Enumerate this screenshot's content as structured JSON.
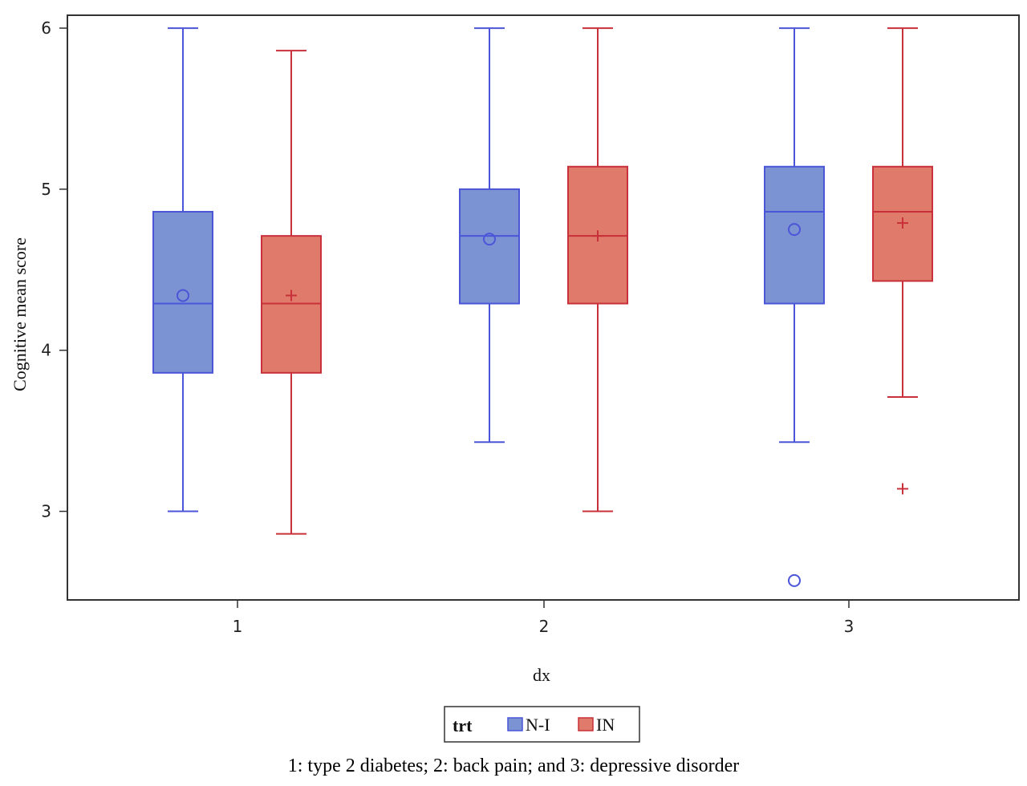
{
  "chart_data": {
    "type": "box",
    "xlabel": "dx",
    "ylabel": "Cognitive mean score",
    "ylim": [
      2.45,
      6.08
    ],
    "y_ticks": [
      3,
      4,
      5,
      6
    ],
    "categories": [
      "1",
      "2",
      "3"
    ],
    "group_title": "trt",
    "series": [
      {
        "name": "N-I",
        "color": "#7b93d3",
        "line_color": "#4a55d8",
        "mean_marker": "circle",
        "boxes": [
          {
            "category": "1",
            "whisker_low": 3.0,
            "q1": 3.86,
            "median": 4.29,
            "q3": 4.86,
            "whisker_high": 6.0,
            "mean": 4.34,
            "outliers": []
          },
          {
            "category": "2",
            "whisker_low": 3.43,
            "q1": 4.29,
            "median": 4.71,
            "q3": 5.0,
            "whisker_high": 6.0,
            "mean": 4.69,
            "outliers": []
          },
          {
            "category": "3",
            "whisker_low": 3.43,
            "q1": 4.29,
            "median": 4.86,
            "q3": 5.14,
            "whisker_high": 6.0,
            "mean": 4.75,
            "outliers": [
              2.57
            ]
          }
        ]
      },
      {
        "name": "IN",
        "color": "#e07b6c",
        "line_color": "#c8303a",
        "mean_marker": "plus",
        "boxes": [
          {
            "category": "1",
            "whisker_low": 2.86,
            "q1": 3.86,
            "median": 4.29,
            "q3": 4.71,
            "whisker_high": 5.86,
            "mean": 4.34,
            "outliers": []
          },
          {
            "category": "2",
            "whisker_low": 3.0,
            "q1": 4.29,
            "median": 4.71,
            "q3": 5.14,
            "whisker_high": 6.0,
            "mean": 4.71,
            "outliers": []
          },
          {
            "category": "3",
            "whisker_low": 3.71,
            "q1": 4.43,
            "median": 4.86,
            "q3": 5.14,
            "whisker_high": 6.0,
            "mean": 4.79,
            "outliers": [
              3.14
            ]
          }
        ]
      }
    ]
  },
  "caption": "1: type 2 diabetes; 2: back pain; and 3: depressive disorder"
}
